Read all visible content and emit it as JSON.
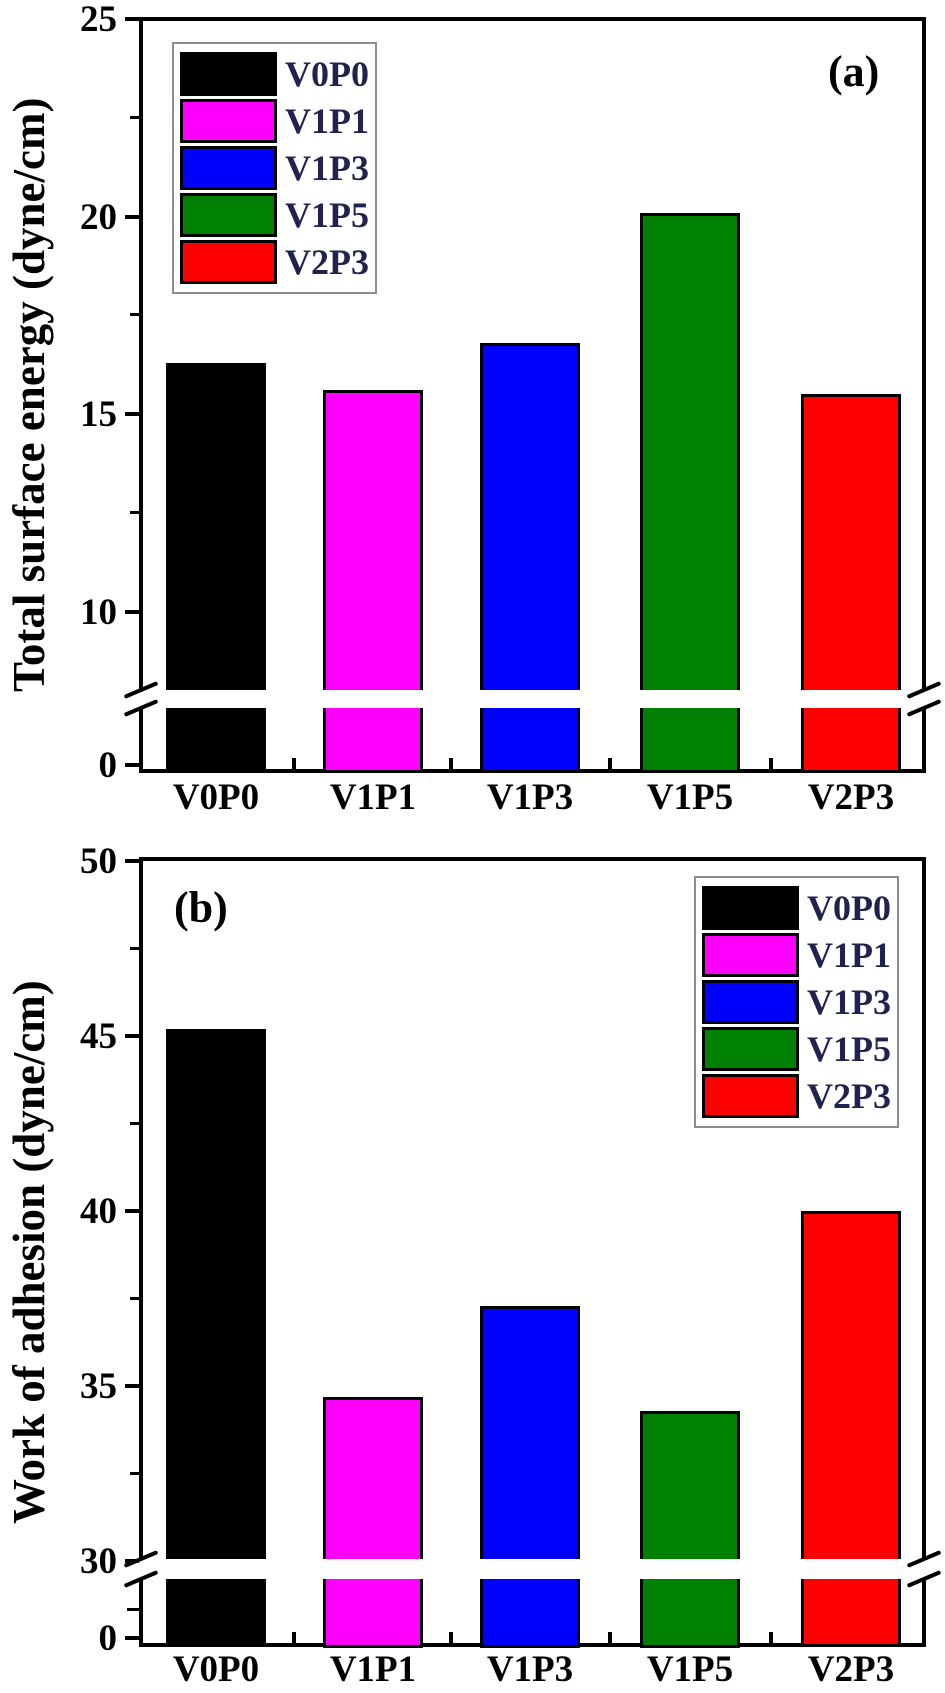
{
  "figure": {
    "background": "#ffffff"
  },
  "chart_data": [
    {
      "type": "bar",
      "panel_label": "(a)",
      "ylabel": "Total surface energy (dyne/cm)",
      "categories": [
        "V0P0",
        "V1P1",
        "V1P3",
        "V1P5",
        "V2P3"
      ],
      "values": [
        16.3,
        15.6,
        16.8,
        20.1,
        15.5
      ],
      "bar_colors": [
        "#000000",
        "#ff00ff",
        "#0000ff",
        "#008000",
        "#ff0000"
      ],
      "legend": {
        "position": "top-left",
        "entries": [
          {
            "label": "V0P0",
            "color": "#000000"
          },
          {
            "label": "V1P1",
            "color": "#ff00ff"
          },
          {
            "label": "V1P3",
            "color": "#0000ff"
          },
          {
            "label": "V1P5",
            "color": "#008000"
          },
          {
            "label": "V2P3",
            "color": "#ff0000"
          }
        ]
      },
      "ylim": [
        0,
        25
      ],
      "yticks_major": [
        25,
        20,
        15,
        10
      ],
      "yticks_minor": [
        22.5,
        17.5,
        12.5
      ],
      "zero_tick_label": "0",
      "axis_break": {
        "below_value": 8,
        "lower_segment_label": "0",
        "style": "double-slash"
      },
      "grid": false
    },
    {
      "type": "bar",
      "panel_label": "(b)",
      "ylabel": "Work of adhesion (dyne/cm)",
      "categories": [
        "V0P0",
        "V1P1",
        "V1P3",
        "V1P5",
        "V2P3"
      ],
      "values": [
        45.2,
        34.7,
        37.3,
        34.3,
        40.0
      ],
      "bar_colors": [
        "#000000",
        "#ff00ff",
        "#0000ff",
        "#008000",
        "#ff0000"
      ],
      "legend": {
        "position": "top-right",
        "entries": [
          {
            "label": "V0P0",
            "color": "#000000"
          },
          {
            "label": "V1P1",
            "color": "#ff00ff"
          },
          {
            "label": "V1P3",
            "color": "#0000ff"
          },
          {
            "label": "V1P5",
            "color": "#008000"
          },
          {
            "label": "V2P3",
            "color": "#ff0000"
          }
        ]
      },
      "ylim": [
        0,
        50
      ],
      "yticks_major": [
        50,
        45,
        40,
        35,
        30
      ],
      "yticks_minor": [
        47.5,
        42.5,
        37.5,
        32.5
      ],
      "zero_tick_label": "0",
      "axis_break": {
        "below_value": 30,
        "lower_segment_label": "0",
        "style": "double-slash"
      },
      "grid": false
    }
  ]
}
